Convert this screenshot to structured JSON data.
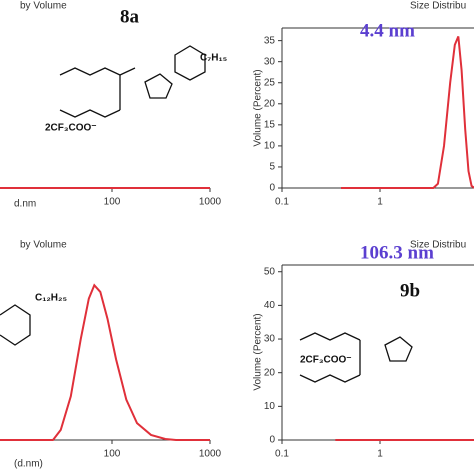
{
  "chart_data": [
    {
      "type": "line",
      "title": "by Volume",
      "label": "8a",
      "xlabel": "d.nm",
      "log_x": true,
      "color": "#e0303a",
      "xlim": [
        7.2,
        1000
      ],
      "ylim": [
        0,
        38
      ],
      "xticks": [
        100,
        1000
      ],
      "x": [
        7.2,
        1000
      ],
      "values": [
        0,
        0
      ],
      "structure_labels": [
        "2CF₃COO⁻",
        "C₇H₁₅"
      ]
    },
    {
      "type": "line",
      "title": "Size Distribu",
      "annotation": "4.4 nm",
      "ylabel": "Volume (Percent)",
      "log_x": true,
      "color": "#e0303a",
      "xlim": [
        0.1,
        10
      ],
      "ylim": [
        0,
        38
      ],
      "xticks": [
        0.1,
        1
      ],
      "yticks": [
        0,
        5,
        10,
        15,
        20,
        25,
        30,
        35
      ],
      "x": [
        0.4,
        3.5,
        3.9,
        4.5,
        5.2,
        5.8,
        6.3,
        6.8,
        7.4,
        8,
        8.6,
        9.2
      ],
      "values": [
        0,
        0,
        1,
        10,
        25,
        34,
        36,
        28,
        14,
        4,
        0.5,
        0
      ]
    },
    {
      "type": "line",
      "title": "by Volume",
      "xlabel": "(d.nm)",
      "log_x": true,
      "color": "#e0303a",
      "xlim": [
        7.2,
        1000
      ],
      "ylim": [
        0,
        52
      ],
      "xticks": [
        100,
        1000
      ],
      "x": [
        7.2,
        25,
        30,
        38,
        48,
        58,
        66,
        76,
        90,
        110,
        140,
        180,
        250,
        350,
        450,
        1000
      ],
      "values": [
        0,
        0,
        3,
        13,
        30,
        42,
        46,
        44,
        36,
        24,
        12,
        5,
        1.5,
        0.3,
        0,
        0
      ],
      "structure_labels": [
        "C₁₂H₂₅"
      ]
    },
    {
      "type": "line",
      "title": "Size Distribu",
      "annotation": "106.3 nm",
      "label": "9b",
      "ylabel": "Volume (Percent)",
      "log_x": true,
      "color": "#e0303a",
      "xlim": [
        0.1,
        10
      ],
      "ylim": [
        0,
        52
      ],
      "xticks": [
        0.1,
        1
      ],
      "yticks": [
        0,
        10,
        20,
        30,
        40,
        50
      ],
      "x": [
        0.35,
        10
      ],
      "values": [
        0,
        0
      ],
      "structure_labels": [
        "2CF₃COO⁻"
      ]
    }
  ]
}
